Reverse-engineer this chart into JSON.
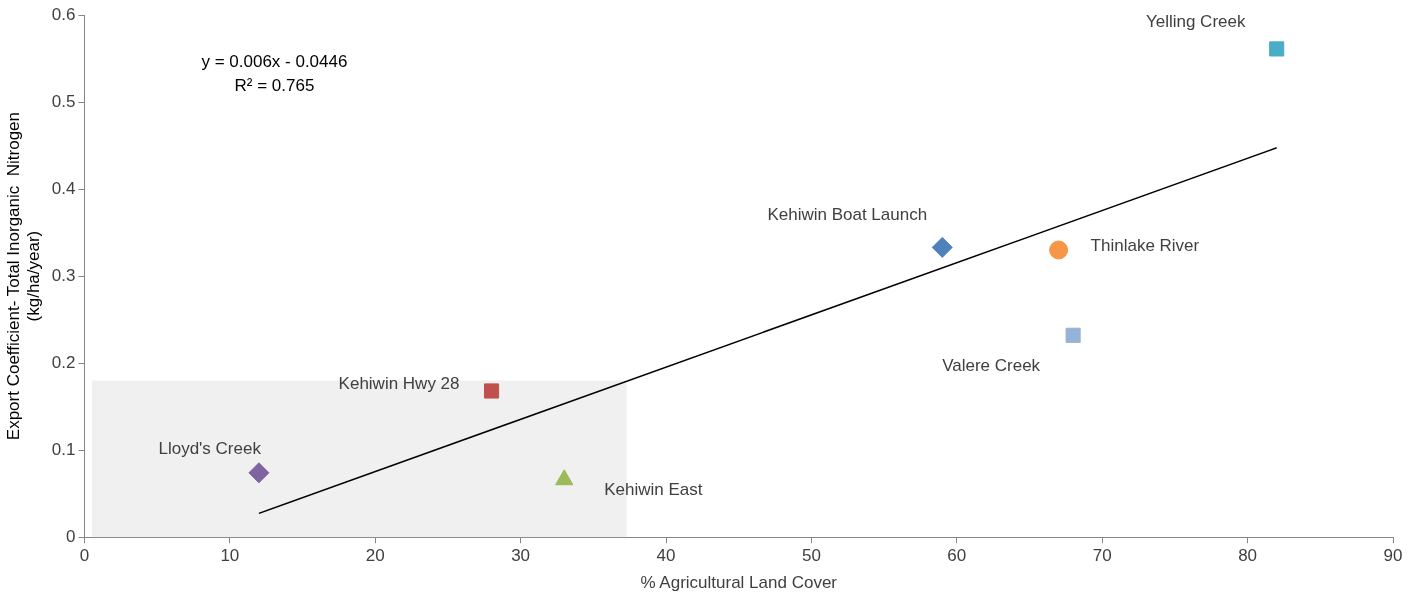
{
  "chart_data": {
    "type": "scatter",
    "xlabel": "% Agricultural Land Cover",
    "ylabel": "Export Coefficient- Total Inorganic  Nitrogen\n(kg/ha/year)",
    "xlim": [
      0,
      90
    ],
    "xticks": [
      0,
      10,
      20,
      30,
      40,
      50,
      60,
      70,
      80,
      90
    ],
    "ylim": [
      0,
      0.6
    ],
    "yticks": [
      0,
      0.1,
      0.2,
      0.3,
      0.4,
      0.5,
      0.6
    ],
    "grid": false,
    "legend": false,
    "annotations": [
      "y = 0.006x - 0.0446",
      "R² = 0.765"
    ],
    "series": [
      {
        "type": "area",
        "color": "#f0f0f0",
        "x": [
          0.5,
          37.3
        ],
        "values": [
          0.18,
          0.18
        ]
      },
      {
        "type": "line",
        "color": "#000000",
        "marker": "none",
        "x": [
          12,
          82
        ],
        "values": [
          0.0274,
          0.4474
        ]
      },
      {
        "name": "Lloyd's Creek",
        "color": "#8064a2",
        "marker": "diamond",
        "x": [
          12
        ],
        "values": [
          0.074
        ]
      },
      {
        "name": "Kehiwin Hwy 28",
        "color": "#c0504d",
        "marker": "square",
        "x": [
          28
        ],
        "values": [
          0.168
        ]
      },
      {
        "name": "Kehiwin East",
        "color": "#9bbb59",
        "marker": "triangle",
        "x": [
          33
        ],
        "values": [
          0.066
        ]
      },
      {
        "name": "Kehiwin Boat Launch",
        "color": "#4f81bd",
        "marker": "diamond",
        "x": [
          59
        ],
        "values": [
          0.333
        ]
      },
      {
        "name": "Thinlake River",
        "color": "#f79646",
        "marker": "circle",
        "x": [
          67
        ],
        "values": [
          0.33
        ]
      },
      {
        "name": "Valere Creek",
        "color": "#95b3d7",
        "marker": "square",
        "x": [
          68
        ],
        "values": [
          0.232
        ]
      },
      {
        "name": "Yelling Creek",
        "color": "#4bacc6",
        "marker": "square",
        "x": [
          82
        ],
        "values": [
          0.561
        ]
      }
    ]
  }
}
